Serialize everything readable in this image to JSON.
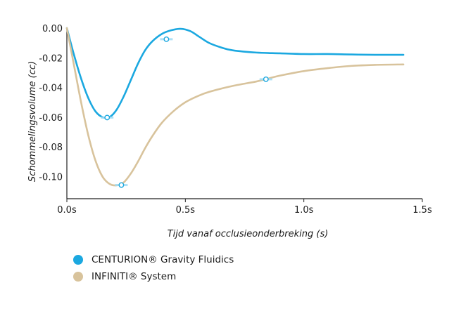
{
  "chart_data": {
    "type": "line",
    "title": "",
    "xlabel": "Tijd vanaf occlusieonderbreking (s)",
    "ylabel": "Schommelingsvolume (cc)",
    "xlim": [
      0,
      1.5
    ],
    "ylim": [
      -0.115,
      0.0
    ],
    "x_ticks": [
      {
        "value": 0.0,
        "label": "0.0s"
      },
      {
        "value": 0.5,
        "label": "0.5s"
      },
      {
        "value": 1.0,
        "label": "1.0s"
      },
      {
        "value": 1.5,
        "label": "1.5s"
      }
    ],
    "y_ticks": [
      {
        "value": 0.0,
        "label": "0.00"
      },
      {
        "value": -0.02,
        "label": "-0.02"
      },
      {
        "value": -0.04,
        "label": "-0.04"
      },
      {
        "value": -0.06,
        "label": "-0.06"
      },
      {
        "value": -0.08,
        "label": "-0.08"
      },
      {
        "value": -0.1,
        "label": "-0.10"
      }
    ],
    "grid": false,
    "legend_position": "bottom-left",
    "series": [
      {
        "name": "CENTURION® Gravity Fluidics",
        "color": "#1ba8e0",
        "x": [
          0.0,
          0.03,
          0.06,
          0.09,
          0.12,
          0.15,
          0.18,
          0.21,
          0.24,
          0.27,
          0.3,
          0.33,
          0.36,
          0.4,
          0.44,
          0.48,
          0.52,
          0.56,
          0.6,
          0.65,
          0.7,
          0.8,
          0.9,
          1.0,
          1.1,
          1.2,
          1.3,
          1.42
        ],
        "y": [
          0.0,
          -0.018,
          -0.034,
          -0.047,
          -0.056,
          -0.06,
          -0.06,
          -0.055,
          -0.046,
          -0.035,
          -0.024,
          -0.015,
          -0.009,
          -0.004,
          -0.0015,
          -0.0005,
          -0.002,
          -0.006,
          -0.01,
          -0.013,
          -0.015,
          -0.0165,
          -0.017,
          -0.0175,
          -0.0175,
          -0.0178,
          -0.018,
          -0.018
        ],
        "markers": [
          {
            "x": 0.17,
            "y": -0.0603
          },
          {
            "x": 0.42,
            "y": -0.0075
          }
        ]
      },
      {
        "name": "INFINITI® System",
        "color": "#d8c39c",
        "x": [
          0.0,
          0.03,
          0.06,
          0.09,
          0.12,
          0.15,
          0.18,
          0.21,
          0.24,
          0.27,
          0.3,
          0.33,
          0.36,
          0.4,
          0.45,
          0.5,
          0.55,
          0.6,
          0.7,
          0.8,
          0.85,
          0.9,
          1.0,
          1.1,
          1.2,
          1.3,
          1.42
        ],
        "y": [
          0.0,
          -0.025,
          -0.05,
          -0.072,
          -0.089,
          -0.1,
          -0.105,
          -0.106,
          -0.104,
          -0.098,
          -0.09,
          -0.081,
          -0.073,
          -0.064,
          -0.056,
          -0.05,
          -0.046,
          -0.043,
          -0.039,
          -0.036,
          -0.034,
          -0.032,
          -0.029,
          -0.027,
          -0.0255,
          -0.0248,
          -0.0245
        ],
        "markers": [
          {
            "x": 0.23,
            "y": -0.1058
          },
          {
            "x": 0.84,
            "y": -0.0345
          }
        ]
      }
    ]
  },
  "legend": {
    "items": [
      {
        "label": "CENTURION® Gravity Fluidics",
        "color": "#1ba8e0"
      },
      {
        "label": "INFINITI® System",
        "color": "#d8c39c"
      }
    ]
  }
}
